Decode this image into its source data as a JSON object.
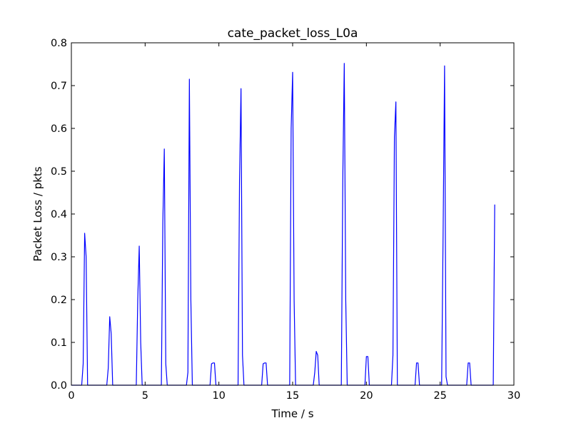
{
  "chart_data": {
    "type": "line",
    "title": "cate_packet_loss_L0a",
    "xlabel": "Time / s",
    "ylabel": "Packet Loss / pkts",
    "xlim": [
      0,
      30
    ],
    "ylim": [
      0,
      0.8
    ],
    "xticks": [
      0,
      5,
      10,
      15,
      20,
      25,
      30
    ],
    "xtick_labels": [
      "0",
      "5",
      "10",
      "15",
      "20",
      "25",
      "30"
    ],
    "yticks": [
      0.0,
      0.1,
      0.2,
      0.3,
      0.4,
      0.5,
      0.6,
      0.7,
      0.8
    ],
    "ytick_labels": [
      "0.0",
      "0.1",
      "0.2",
      "0.3",
      "0.4",
      "0.5",
      "0.6",
      "0.7",
      "0.8"
    ],
    "grid": false,
    "series": [
      {
        "name": "cate_packet_loss_L0a",
        "color": "#0000ff",
        "x": [
          0.0,
          0.7,
          0.8,
          0.9,
          1.0,
          1.1,
          2.4,
          2.5,
          2.6,
          2.7,
          2.8,
          4.4,
          4.5,
          4.6,
          4.7,
          4.8,
          6.1,
          6.2,
          6.3,
          6.4,
          6.5,
          7.8,
          7.9,
          8.0,
          8.1,
          8.2,
          9.4,
          9.5,
          9.6,
          9.7,
          9.8,
          11.3,
          11.4,
          11.5,
          11.6,
          11.7,
          12.9,
          13.0,
          13.1,
          13.2,
          13.3,
          14.8,
          14.9,
          15.0,
          15.1,
          15.2,
          16.4,
          16.5,
          16.6,
          16.7,
          16.8,
          18.3,
          18.4,
          18.5,
          18.6,
          18.7,
          19.9,
          20.0,
          20.1,
          20.2,
          21.7,
          21.8,
          21.9,
          22.0,
          22.1,
          23.3,
          23.4,
          23.5,
          23.6,
          25.1,
          25.2,
          25.3,
          25.4,
          25.5,
          26.8,
          26.9,
          27.0,
          27.1,
          28.6,
          28.7
        ],
        "y": [
          0.0,
          0.0,
          0.05,
          0.355,
          0.3,
          0.0,
          0.0,
          0.04,
          0.16,
          0.12,
          0.0,
          0.0,
          0.2,
          0.325,
          0.1,
          0.0,
          0.0,
          0.38,
          0.552,
          0.05,
          0.0,
          0.0,
          0.03,
          0.715,
          0.2,
          0.0,
          0.0,
          0.05,
          0.052,
          0.052,
          0.0,
          0.0,
          0.48,
          0.693,
          0.07,
          0.0,
          0.0,
          0.05,
          0.052,
          0.052,
          0.0,
          0.0,
          0.6,
          0.731,
          0.2,
          0.0,
          0.0,
          0.03,
          0.079,
          0.07,
          0.0,
          0.0,
          0.48,
          0.752,
          0.2,
          0.0,
          0.0,
          0.067,
          0.067,
          0.0,
          0.0,
          0.07,
          0.58,
          0.662,
          0.0,
          0.0,
          0.052,
          0.052,
          0.0,
          0.0,
          0.35,
          0.746,
          0.02,
          0.0,
          0.0,
          0.052,
          0.052,
          0.0,
          0.0,
          0.422
        ]
      }
    ]
  }
}
